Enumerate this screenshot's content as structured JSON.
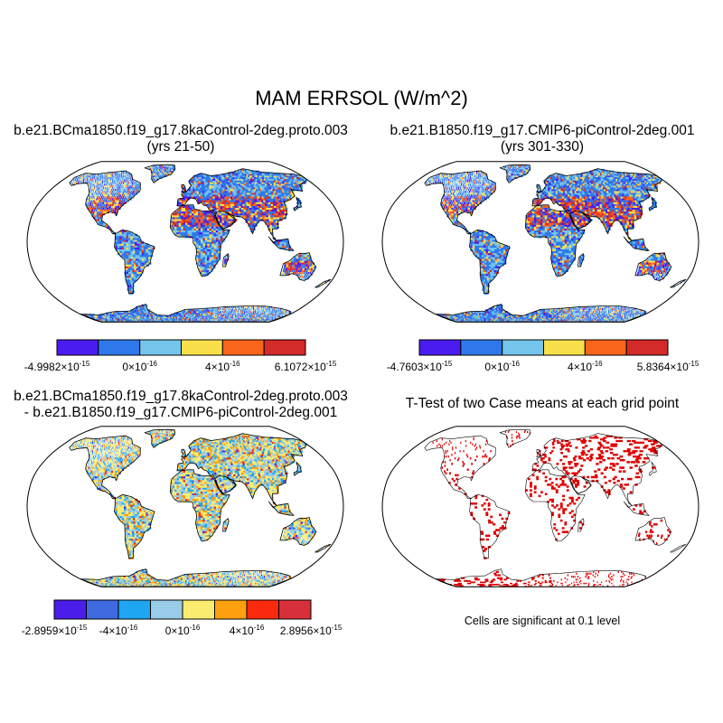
{
  "figure": {
    "title": "MAM ERRSOL (W/m^2)"
  },
  "panels": {
    "p1": {
      "title": "b.e21.BCma1850.f19_g17.8kaControl-2deg.proto.003",
      "subtitle": "(yrs 21-50)",
      "colorbar": {
        "colors": [
          "#4b1cf0",
          "#2f78ec",
          "#74c4ec",
          "#f9e04a",
          "#f9651a",
          "#d32a2a"
        ],
        "labels": [
          "-4.9982×10^-15",
          "0×10^-16",
          "4×10^-16",
          "6.1072×10^-15"
        ]
      }
    },
    "p2": {
      "title": "b.e21.B1850.f19_g17.CMIP6-piControl-2deg.001",
      "subtitle": "(yrs 301-330)",
      "colorbar": {
        "colors": [
          "#4b1cf0",
          "#2f78ec",
          "#74c4ec",
          "#f9e04a",
          "#f9651a",
          "#d32a2a"
        ],
        "labels": [
          "-4.7603×10^-15",
          "0×10^-16",
          "4×10^-16",
          "5.8364×10^-15"
        ]
      }
    },
    "p3": {
      "title": "b.e21.BCma1850.f19_g17.8kaControl-2deg.proto.003",
      "subtitle": "- b.e21.B1850.f19_g17.CMIP6-piControl-2deg.001",
      "colorbar": {
        "colors": [
          "#4a1ee8",
          "#3f6ae0",
          "#1ea6f0",
          "#98cce8",
          "#faec70",
          "#fca010",
          "#fc2a0c",
          "#d8303a"
        ],
        "labels": [
          "-2.8959×10^-15",
          "-4×10^-16",
          "0×10^-16",
          "4×10^-16",
          "2.8956×10^-15"
        ]
      }
    },
    "p4": {
      "title": "T-Test of two Case means at each grid point",
      "note": "Cells are significant at 0.1 level",
      "colors": {
        "significant": "#e00000"
      }
    }
  }
}
